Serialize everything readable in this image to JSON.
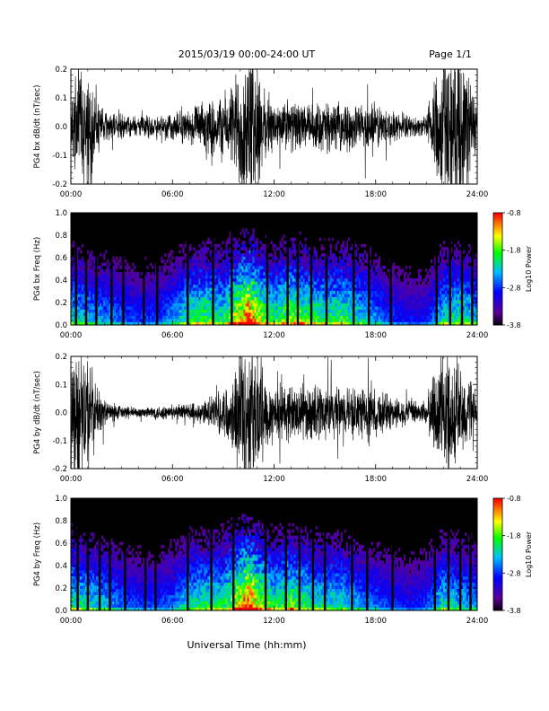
{
  "header": {
    "title": "2015/03/19   00:00-24:00 UT",
    "page": "Page 1/1"
  },
  "footer": {
    "xlabel": "Universal Time (hh:mm)"
  },
  "chart_data": [
    {
      "type": "line",
      "ylabel": "PG4 bx dB/dt (nT/sec)",
      "xlim": [
        0,
        24
      ],
      "ylim": [
        -0.2,
        0.2
      ],
      "x_ticks": [
        "00:00",
        "06:00",
        "12:00",
        "18:00",
        "24:00"
      ],
      "y_ticks": [
        "-0.2",
        "-0.1",
        "0.0",
        "0.1",
        "0.2"
      ],
      "amplitude_envelope": {
        "hours": [
          0,
          0.5,
          1,
          1.5,
          2,
          3,
          4,
          5,
          6,
          7,
          8,
          8.5,
          9,
          9.5,
          10,
          10.5,
          11,
          11.5,
          12,
          12.5,
          13,
          14,
          15,
          16,
          17,
          18,
          19,
          20,
          21,
          21.5,
          22,
          22.5,
          23,
          23.5,
          24
        ],
        "values": [
          0.12,
          0.25,
          0.25,
          0.12,
          0.06,
          0.05,
          0.04,
          0.05,
          0.06,
          0.07,
          0.1,
          0.12,
          0.14,
          0.15,
          0.3,
          0.3,
          0.3,
          0.12,
          0.1,
          0.1,
          0.1,
          0.09,
          0.1,
          0.09,
          0.09,
          0.1,
          0.06,
          0.04,
          0.04,
          0.25,
          0.3,
          0.3,
          0.3,
          0.25,
          0.1
        ]
      }
    },
    {
      "type": "heatmap",
      "ylabel": "PG4 bx Freq (Hz)",
      "xlim": [
        0,
        24
      ],
      "ylim": [
        0,
        1.0
      ],
      "x_ticks": [
        "00:00",
        "06:00",
        "12:00",
        "18:00",
        "24:00"
      ],
      "y_ticks": [
        "0.0",
        "0.2",
        "0.4",
        "0.6",
        "0.8",
        "1.0"
      ],
      "colorbar": {
        "label": "Log10 Power",
        "range": [
          -3.8,
          -0.8
        ],
        "ticks": [
          "-0.8",
          "-1.8",
          "-2.8",
          "-3.8"
        ],
        "colors": [
          "#000000",
          "#7a00c8",
          "#0000ff",
          "#00c8ff",
          "#00ff00",
          "#ffff00",
          "#ff8000",
          "#ff0000"
        ]
      },
      "activity_profile": {
        "hours": [
          0,
          1,
          2,
          3,
          4,
          5,
          6,
          7,
          8,
          9,
          10,
          10.5,
          11,
          12,
          13,
          14,
          15,
          16,
          17,
          18,
          19,
          20,
          21,
          22,
          23,
          24
        ],
        "values": [
          0.55,
          0.5,
          0.45,
          0.4,
          0.35,
          0.35,
          0.45,
          0.6,
          0.65,
          0.6,
          0.85,
          1.0,
          0.8,
          0.6,
          0.75,
          0.65,
          0.6,
          0.65,
          0.55,
          0.45,
          0.35,
          0.3,
          0.3,
          0.55,
          0.6,
          0.5
        ]
      },
      "gaps_hours": [
        0.3,
        0.9,
        1.5,
        2.4,
        3.1,
        4.3,
        5.1,
        6.9,
        8.4,
        9.5,
        11.6,
        12.8,
        13.4,
        14.2,
        15.1,
        16.7,
        17.6,
        18.9,
        21.6,
        22.4,
        23.1,
        23.7
      ]
    },
    {
      "type": "line",
      "ylabel": "PG4 by dB/dt (nT/sec)",
      "xlim": [
        0,
        24
      ],
      "ylim": [
        -0.2,
        0.2
      ],
      "x_ticks": [
        "00:00",
        "06:00",
        "12:00",
        "18:00",
        "24:00"
      ],
      "y_ticks": [
        "-0.2",
        "-0.1",
        "0.0",
        "0.1",
        "0.2"
      ],
      "amplitude_envelope": {
        "hours": [
          0,
          0.5,
          1,
          1.5,
          2,
          3,
          4,
          5,
          6,
          7,
          8,
          8.5,
          9,
          9.5,
          10,
          10.5,
          11,
          11.5,
          12,
          12.5,
          13,
          14,
          15,
          16,
          17,
          18,
          19,
          20,
          21,
          21.5,
          22,
          22.5,
          23,
          23.5,
          24
        ],
        "values": [
          0.2,
          0.3,
          0.25,
          0.12,
          0.05,
          0.03,
          0.02,
          0.03,
          0.03,
          0.04,
          0.05,
          0.08,
          0.1,
          0.13,
          0.3,
          0.3,
          0.3,
          0.15,
          0.13,
          0.12,
          0.12,
          0.11,
          0.12,
          0.1,
          0.1,
          0.1,
          0.07,
          0.05,
          0.05,
          0.2,
          0.25,
          0.25,
          0.2,
          0.15,
          0.08
        ]
      }
    },
    {
      "type": "heatmap",
      "ylabel": "PG4 by Freq (Hz)",
      "xlim": [
        0,
        24
      ],
      "ylim": [
        0,
        1.0
      ],
      "x_ticks": [
        "00:00",
        "06:00",
        "12:00",
        "18:00",
        "24:00"
      ],
      "y_ticks": [
        "0.0",
        "0.2",
        "0.4",
        "0.6",
        "0.8",
        "1.0"
      ],
      "colorbar": {
        "label": "Log10 Power",
        "range": [
          -3.8,
          -0.8
        ],
        "ticks": [
          "-0.8",
          "-1.8",
          "-2.8",
          "-3.8"
        ],
        "colors": [
          "#000000",
          "#7a00c8",
          "#0000ff",
          "#00c8ff",
          "#00ff00",
          "#ffff00",
          "#ff8000",
          "#ff0000"
        ]
      },
      "activity_profile": {
        "hours": [
          0,
          1,
          2,
          3,
          4,
          5,
          6,
          7,
          8,
          9,
          10,
          10.5,
          11,
          12,
          13,
          14,
          15,
          16,
          17,
          18,
          19,
          20,
          21,
          22,
          23,
          24
        ],
        "values": [
          0.6,
          0.55,
          0.5,
          0.4,
          0.35,
          0.35,
          0.4,
          0.55,
          0.6,
          0.6,
          0.85,
          1.0,
          0.8,
          0.6,
          0.7,
          0.6,
          0.55,
          0.55,
          0.45,
          0.4,
          0.35,
          0.3,
          0.35,
          0.55,
          0.5,
          0.45
        ]
      },
      "gaps_hours": [
        0.4,
        1.0,
        1.7,
        2.3,
        3.2,
        4.4,
        5.0,
        6.9,
        8.3,
        9.6,
        11.5,
        12.7,
        13.5,
        14.3,
        15.0,
        16.6,
        17.5,
        19.0,
        21.5,
        22.3,
        23.0,
        23.6
      ]
    }
  ]
}
